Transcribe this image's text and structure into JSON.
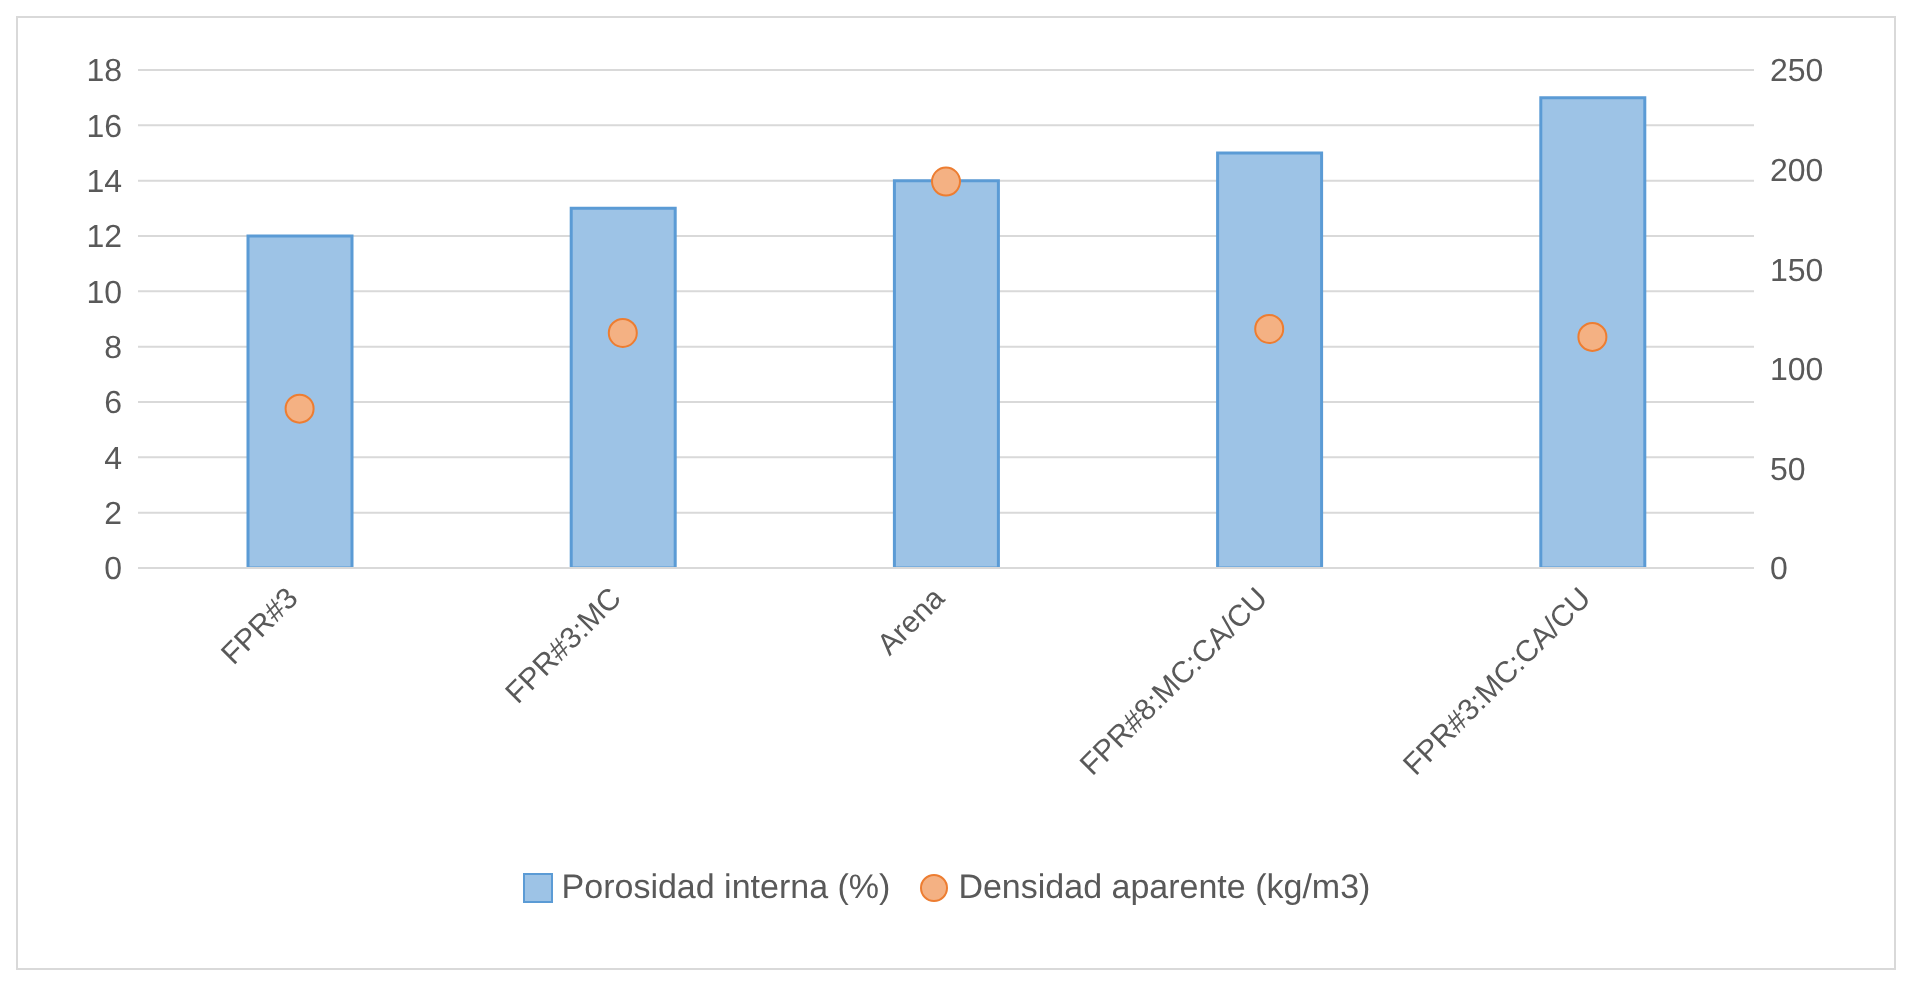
{
  "chart_data": {
    "type": "bar",
    "categories": [
      "FPR#3",
      "FPR#3:MC",
      "Arena",
      "FPR#8:MC:CA/CU",
      "FPR#3:MC:CA/CU"
    ],
    "series": [
      {
        "name": "Porosidad interna (%)",
        "color": "#9dc3e6",
        "values": [
          12,
          13,
          14,
          15,
          17
        ]
      },
      {
        "name": "Densidad aparente (kg/m3)",
        "type": "scatter",
        "axis": "y2",
        "color": "#f4b183",
        "values": [
          80,
          118,
          194,
          120,
          116
        ]
      }
    ],
    "ylim": [
      0,
      18
    ],
    "yticks": [
      0,
      2,
      4,
      6,
      8,
      10,
      12,
      14,
      16,
      18
    ],
    "y2lim": [
      0,
      250
    ],
    "y2ticks": [
      0,
      50,
      100,
      150,
      200,
      250
    ],
    "grid": "y",
    "legend": "bottom",
    "marker": "circle"
  }
}
